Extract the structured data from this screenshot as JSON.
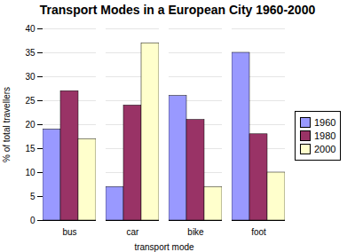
{
  "chart_data": {
    "type": "bar",
    "title": "Transport Modes in a European City 1960-2000",
    "x_label": "transport mode",
    "y_label": "% of total travellers",
    "categories": [
      "bus",
      "car",
      "bike",
      "foot"
    ],
    "series": [
      {
        "name": "1960",
        "color": "#9999ff",
        "values": [
          19,
          7,
          26,
          35
        ]
      },
      {
        "name": "1980",
        "color": "#993366",
        "values": [
          27,
          24,
          21,
          18
        ]
      },
      {
        "name": "2000",
        "color": "#ffffcc",
        "values": [
          17,
          37,
          7,
          10
        ]
      }
    ],
    "ylim": [
      0,
      40
    ],
    "yticks": [
      0,
      5,
      10,
      15,
      20,
      25,
      30,
      35,
      40
    ],
    "grid": true,
    "legend": "right"
  }
}
